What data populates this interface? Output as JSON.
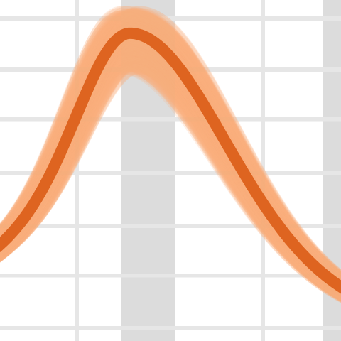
{
  "chart_data": {
    "type": "line",
    "title": "",
    "xlabel": "",
    "ylabel": "",
    "grid": true,
    "shaded_bands": true,
    "series": [
      {
        "role": "ensemble",
        "color": "#f9ae7d",
        "opacity": 0.2,
        "count": 180,
        "peak_height_range": [
          0.8,
          1.12
        ],
        "peak_position_range": [
          -0.12,
          0.12
        ]
      },
      {
        "role": "mean",
        "color": "#de6420",
        "peak_height": 1.0,
        "peak_position": 0
      }
    ],
    "curve_model": "skewed-bump",
    "x_range": [
      -1.6,
      2.6
    ],
    "y_range": [
      -0.85,
      1.2
    ]
  },
  "colors": {
    "background": "#ffffff",
    "grid": "#e6e6e6",
    "band": "#dcdcdc",
    "ensemble": "#f9ae7d",
    "mean": "#de6420"
  }
}
